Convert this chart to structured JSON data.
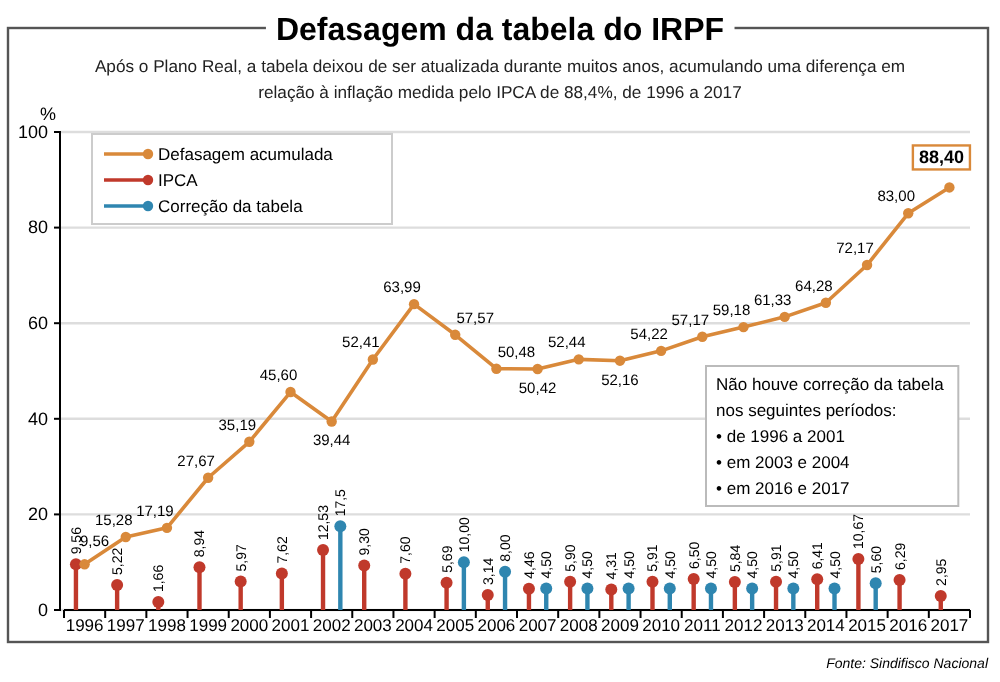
{
  "chart_data": {
    "type": "line",
    "title": "Defasagem da tabela do IRPF",
    "subtitle": "Após o Plano Real, a tabela deixou de ser atualizada durante muitos anos, acumulando uma diferença em relação à inflação medida pelo IPCA de 88,4%, de 1996 a 2017",
    "ylabel": "%",
    "categories": [
      "1996",
      "1997",
      "1998",
      "1999",
      "2000",
      "2001",
      "2002",
      "2003",
      "2004",
      "2005",
      "2006",
      "2007",
      "2008",
      "2009",
      "2010",
      "2011",
      "2012",
      "2013",
      "2014",
      "2015",
      "2016",
      "2017"
    ],
    "series": [
      {
        "name": "Defasagem acumulada",
        "type": "line",
        "color": "#d9893a",
        "values": [
          9.56,
          15.28,
          17.19,
          27.67,
          35.19,
          45.6,
          39.44,
          52.41,
          63.99,
          57.57,
          50.48,
          50.42,
          52.44,
          52.16,
          54.22,
          57.17,
          59.18,
          61.33,
          64.28,
          72.17,
          83.0,
          88.4
        ],
        "value_labels": [
          "9,56",
          "15,28",
          "17,19",
          "27,67",
          "35,19",
          "45,60",
          "39,44",
          "52,41",
          "63,99",
          "57,57",
          "50,48",
          "50,42",
          "52,44",
          "52,16",
          "54,22",
          "57,17",
          "59,18",
          "61,33",
          "64,28",
          "72,17",
          "83,00",
          "88,40"
        ]
      },
      {
        "name": "IPCA",
        "type": "lollipop",
        "color": "#c0392b",
        "values": [
          9.56,
          5.22,
          1.66,
          8.94,
          5.97,
          7.62,
          12.53,
          9.3,
          7.6,
          5.69,
          3.14,
          4.46,
          5.9,
          4.31,
          5.91,
          6.5,
          5.84,
          5.91,
          6.41,
          10.67,
          6.29,
          2.95
        ],
        "value_labels": [
          "9,56",
          "5,22",
          "1,66",
          "8,94",
          "5,97",
          "7,62",
          "12,53",
          "9,30",
          "7,60",
          "5,69",
          "3,14",
          "4,46",
          "5,90",
          "4,31",
          "5,91",
          "6,50",
          "5,84",
          "5,91",
          "6,41",
          "10,67",
          "6,29",
          "2,95"
        ]
      },
      {
        "name": "Correção da tabela",
        "type": "lollipop",
        "color": "#2f86b0",
        "values": [
          null,
          null,
          null,
          null,
          null,
          null,
          17.5,
          null,
          null,
          10.0,
          8.0,
          4.5,
          4.5,
          4.5,
          4.5,
          4.5,
          4.5,
          4.5,
          4.5,
          5.6,
          null,
          null
        ],
        "value_labels": [
          null,
          null,
          null,
          null,
          null,
          null,
          "17,5",
          null,
          null,
          "10,00",
          "8,00",
          "4,50",
          "4,50",
          "4,50",
          "4,50",
          "4,50",
          "4,50",
          "4,50",
          "4,50",
          "5,60",
          null,
          null
        ]
      }
    ],
    "ylim": [
      0,
      100
    ],
    "yticks": [
      0,
      20,
      40,
      60,
      80,
      100
    ],
    "grid": "y",
    "legend": "top left",
    "marker": "circle",
    "annotations": [
      "Não houve correção da tabela\nnos seguintes períodos:\n• de 1996 a 2001\n• em 2003 e 2004\n• em 2016 e 2017",
      "Fonte: Sindifisco Nacional"
    ]
  }
}
